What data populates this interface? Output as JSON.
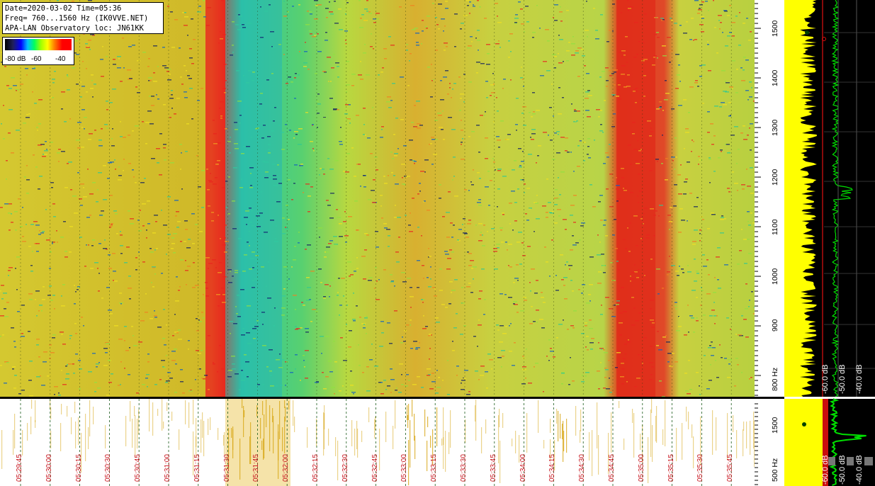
{
  "header": {
    "date_line": "Date=2020-03-02 Time=05:36",
    "freq_line": "Freq= 760...1560 Hz (IK0VVE.NET)",
    "loc_line": "APA-LAN Observatory loc: JN61KK"
  },
  "colorscale": {
    "label_min": "-80 dB",
    "label_mid": "-60",
    "label_max": "-40"
  },
  "freq_axis": {
    "labels": [
      "1500",
      "1400",
      "1300",
      "1200",
      "1100",
      "1000",
      "900",
      "800 Hz"
    ],
    "history_labels": [
      "1500",
      "500 Hz"
    ]
  },
  "spectrum_panel": {
    "db_labels": [
      "-60.0 dB",
      "-50.0 dB",
      "-40.0 dB"
    ],
    "history_db_labels": [
      "-60.0 dB",
      "-50.0 dB",
      "-40.0 dB"
    ]
  },
  "time_axis": {
    "labels": [
      "05:29:45",
      "05:30:00",
      "05:30:15",
      "05:30:30",
      "05:30:45",
      "05:31:00",
      "05:31:15",
      "05:31:30",
      "05:31:45",
      "05:32:00",
      "05:32:15",
      "05:32:30",
      "05:32:45",
      "05:33:00",
      "05:33:15",
      "05:33:30",
      "05:33:45",
      "05:34:00",
      "05:34:15",
      "05:34:30",
      "05:34:45",
      "05:35:00",
      "05:35:15",
      "05:35:30",
      "05:35:45"
    ]
  },
  "colors": {
    "spectrogram_base": "#c8d630",
    "hot_band": "#e8241e",
    "cool_band": "#30c8a0",
    "trace_yellow": "#ffff00",
    "trace_green": "#00e000",
    "time_label": "#c8141e"
  }
}
